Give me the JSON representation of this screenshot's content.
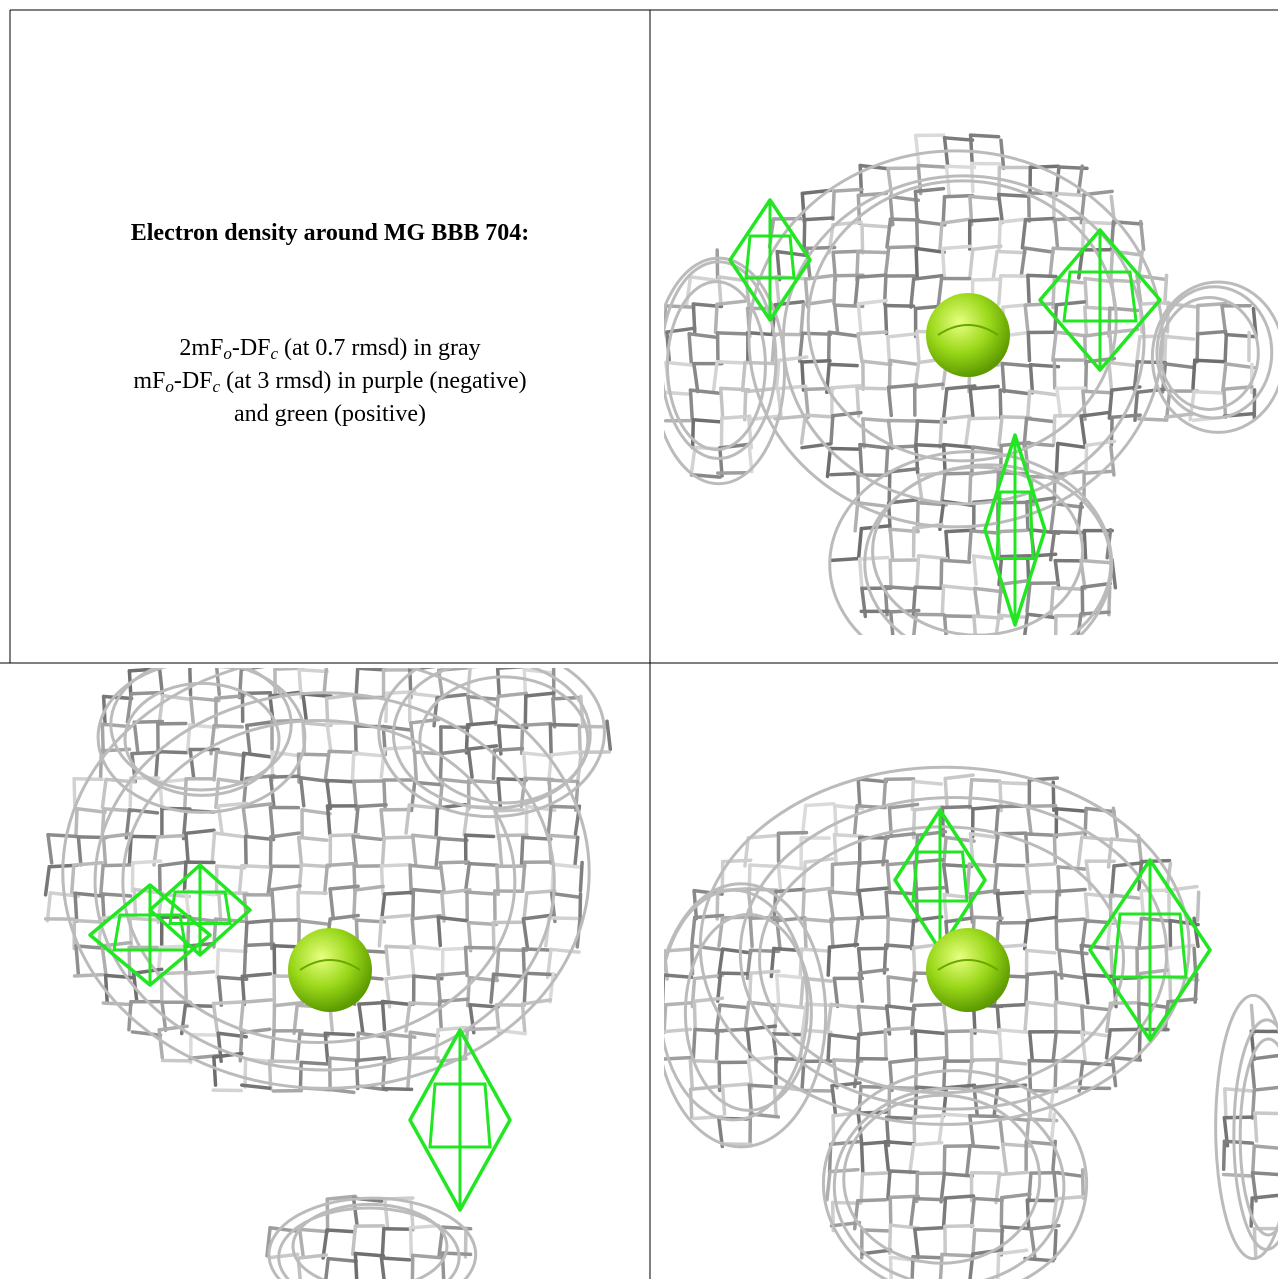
{
  "figure": {
    "title": "Electron density around MG BBB 704:",
    "caption": [
      [
        "2mF",
        "o",
        "-DF",
        "c",
        " (at 0.7 rmsd) in gray"
      ],
      [
        "mF",
        "o",
        "-DF",
        "c",
        " (at 3 rmsd) in purple (negative)"
      ],
      [
        "and green (positive)"
      ]
    ]
  }
}
